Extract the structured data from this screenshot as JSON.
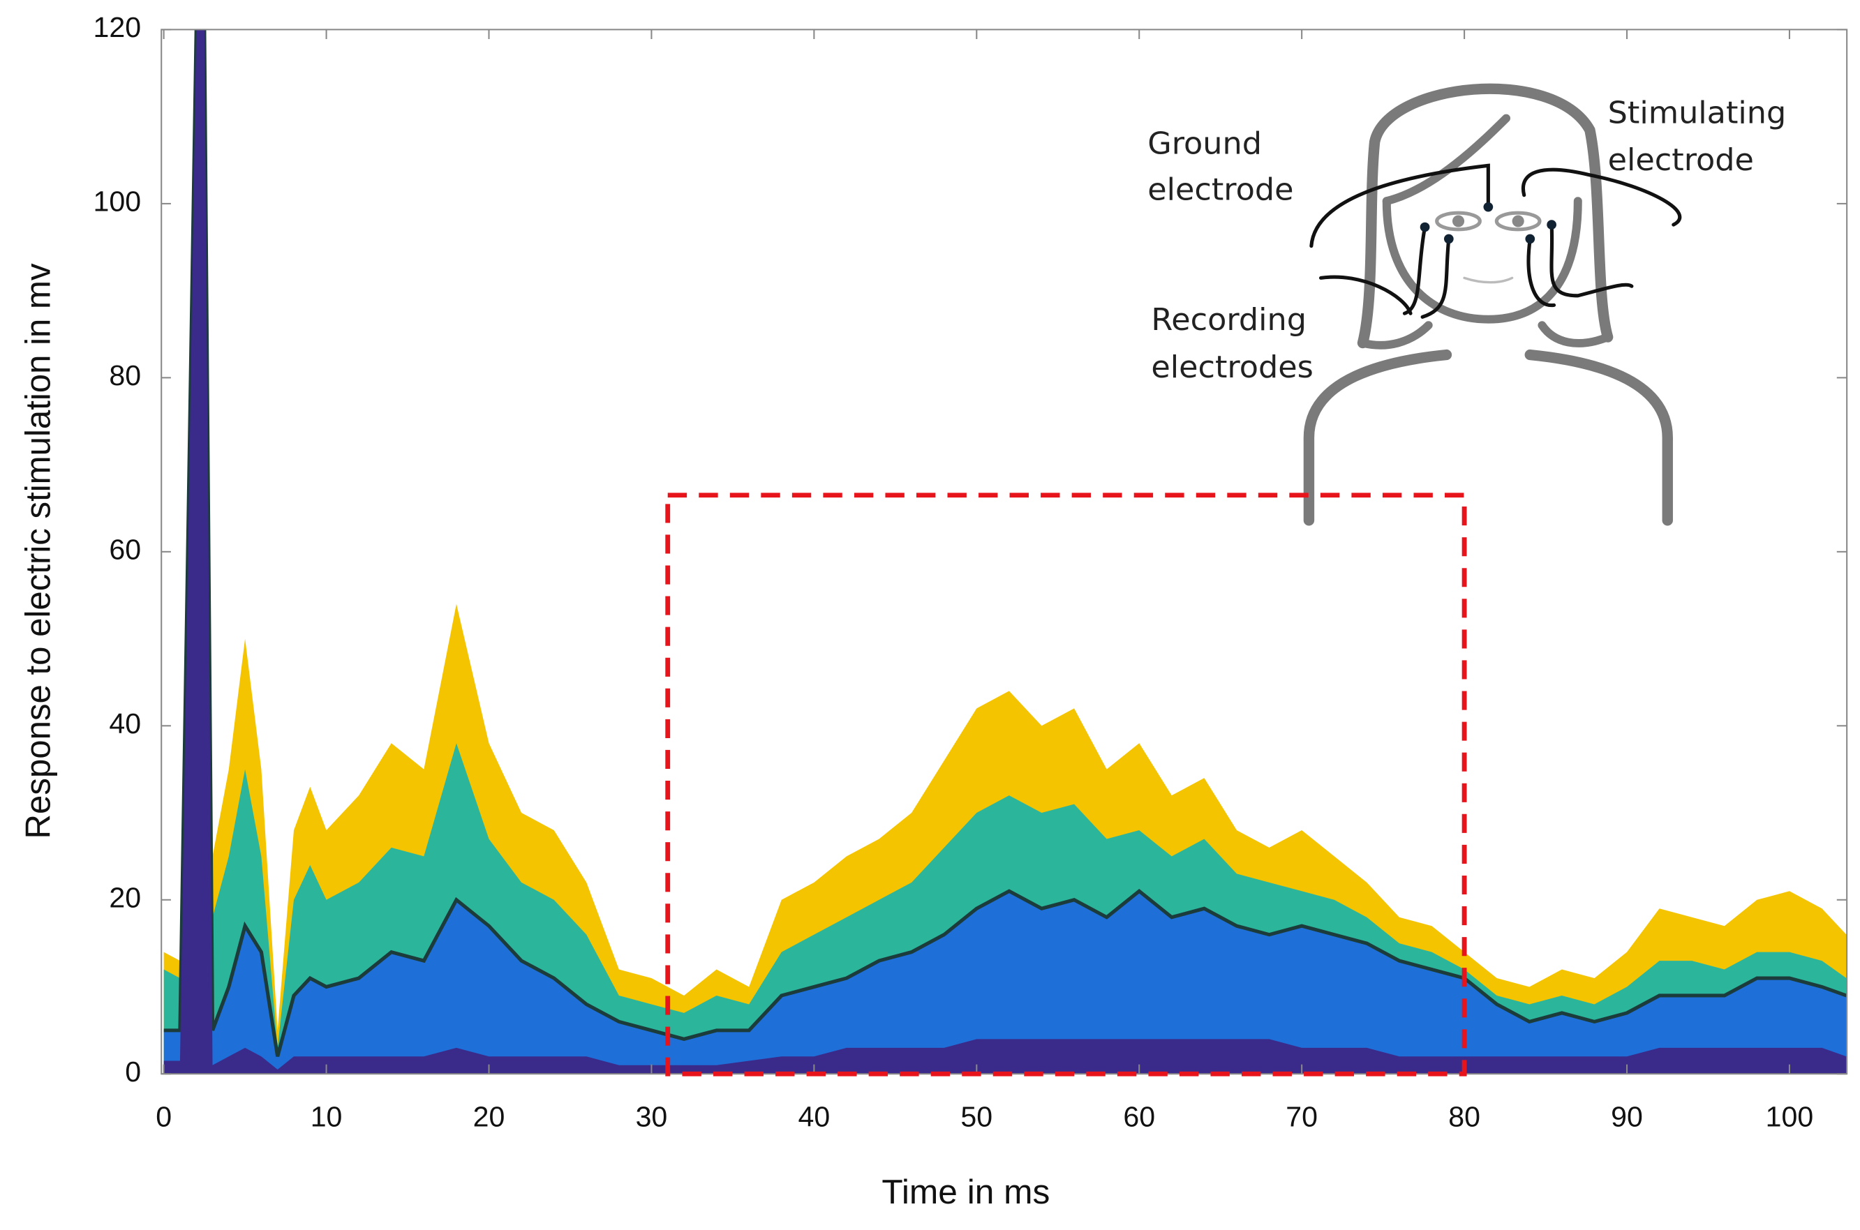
{
  "chart_data": {
    "type": "area",
    "x_label": "Time in ms",
    "y_label": "Response to electric stimulation in mv",
    "x": [
      0,
      1,
      2,
      2.5,
      3,
      4,
      5,
      6,
      7,
      8,
      9,
      10,
      12,
      14,
      16,
      18,
      20,
      22,
      24,
      26,
      28,
      30,
      32,
      34,
      36,
      38,
      40,
      42,
      44,
      46,
      48,
      50,
      52,
      54,
      56,
      58,
      60,
      62,
      64,
      66,
      68,
      70,
      72,
      74,
      76,
      78,
      80,
      82,
      84,
      86,
      88,
      90,
      92,
      94,
      96,
      98,
      100,
      102,
      103.5
    ],
    "series": [
      {
        "color": "#f5c400",
        "values": [
          14,
          13,
          120,
          120,
          25,
          35,
          50,
          35,
          5,
          28,
          33,
          28,
          32,
          38,
          35,
          54,
          38,
          30,
          28,
          22,
          12,
          11,
          9,
          12,
          10,
          20,
          22,
          25,
          27,
          30,
          36,
          42,
          44,
          40,
          42,
          35,
          38,
          32,
          34,
          28,
          26,
          28,
          25,
          22,
          18,
          17,
          14,
          11,
          10,
          12,
          11,
          14,
          19,
          18,
          17,
          20,
          21,
          19,
          16
        ]
      },
      {
        "color": "#2bb59b",
        "values": [
          12,
          11,
          120,
          120,
          18,
          25,
          35,
          25,
          3,
          20,
          24,
          20,
          22,
          26,
          25,
          38,
          27,
          22,
          20,
          16,
          9,
          8,
          7,
          9,
          8,
          14,
          16,
          18,
          20,
          22,
          26,
          30,
          32,
          30,
          31,
          27,
          28,
          25,
          27,
          23,
          22,
          21,
          20,
          18,
          15,
          14,
          12,
          9,
          8,
          9,
          8,
          10,
          13,
          13,
          12,
          14,
          14,
          13,
          11
        ]
      },
      {
        "color": "#1f6fd8",
        "values": [
          5,
          5,
          120,
          120,
          5,
          10,
          17,
          14,
          2,
          9,
          11,
          10,
          11,
          14,
          13,
          20,
          17,
          13,
          11,
          8,
          6,
          5,
          4,
          5,
          5,
          9,
          10,
          11,
          13,
          14,
          16,
          19,
          21,
          19,
          20,
          18,
          21,
          18,
          19,
          17,
          16,
          17,
          16,
          15,
          13,
          12,
          11,
          8,
          6,
          7,
          6,
          7,
          9,
          9,
          9,
          11,
          11,
          10,
          9
        ]
      },
      {
        "color": "#3a2a8a",
        "values": [
          1.5,
          1.5,
          120,
          120,
          1,
          2,
          3,
          2,
          0.5,
          2,
          2,
          2,
          2,
          2,
          2,
          3,
          2,
          2,
          2,
          2,
          1,
          1,
          1,
          1,
          1.5,
          2,
          2,
          3,
          3,
          3,
          3,
          4,
          4,
          4,
          4,
          4,
          4,
          4,
          4,
          4,
          4,
          3,
          3,
          3,
          2,
          2,
          2,
          2,
          2,
          2,
          2,
          2,
          3,
          3,
          3,
          3,
          3,
          3,
          2
        ]
      }
    ],
    "median_color": "#1c3b3b",
    "xlim": [
      0,
      103.5
    ],
    "ylim": [
      0,
      120
    ],
    "xticks": [
      0,
      10,
      20,
      30,
      40,
      50,
      60,
      70,
      80,
      90,
      100
    ],
    "yticks": [
      0,
      20,
      40,
      60,
      80,
      100,
      120
    ],
    "grid": false,
    "highlight": {
      "x": [
        31,
        80
      ],
      "y": [
        0,
        66.5
      ],
      "color": "#e8141c"
    },
    "inset": {
      "ground": [
        "Ground",
        "electrode"
      ],
      "stimulating": [
        "Stimulating",
        "electrode"
      ],
      "recording": [
        "Recording",
        "electrodes"
      ]
    }
  }
}
